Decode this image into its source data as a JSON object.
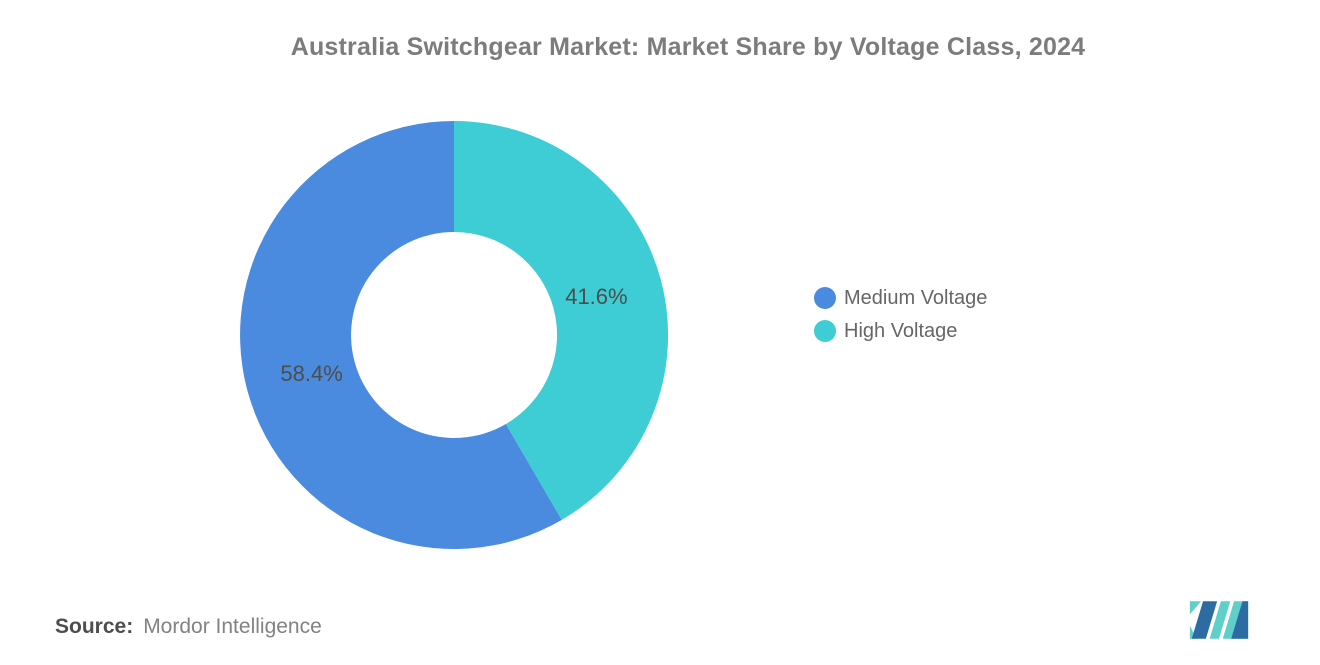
{
  "title": "Australia Switchgear Market: Market Share by Voltage Class, 2024",
  "source": {
    "label": "Source:",
    "value": "Mordor Intelligence"
  },
  "logo": {
    "alt": "Mordor Intelligence logo",
    "blue": "#2D6CA2",
    "teal": "#5ECFC9"
  },
  "colors": {
    "background": "#FFFFFF",
    "title_text": "#7C7C7C",
    "slice_label_text": "#4D4D4D",
    "legend_text": "#666666",
    "medium_voltage": "#4A8BE0",
    "high_voltage": "#3ECDD4"
  },
  "chart_data": {
    "type": "pie",
    "title": "Australia Switchgear Market: Market Share by Voltage Class, 2024",
    "donut": true,
    "inner_radius_ratio": 0.48,
    "start_angle_deg": 0,
    "direction": "counterclockwise",
    "legend_position": "right",
    "series": [
      {
        "name": "Medium Voltage",
        "value": 58.4,
        "label": "58.4%",
        "color": "#4A8BE0"
      },
      {
        "name": "High Voltage",
        "value": 41.6,
        "label": "41.6%",
        "color": "#3ECDD4"
      }
    ]
  }
}
